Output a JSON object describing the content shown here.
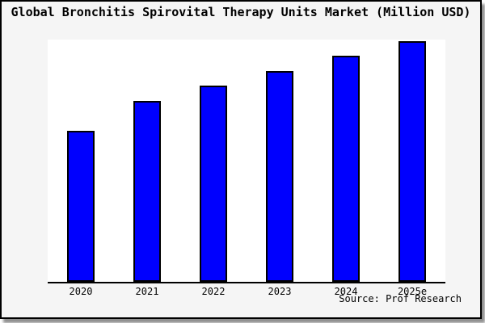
{
  "chart_data": {
    "type": "bar",
    "title": "Global Bronchitis Spirovital Therapy Units Market (Million USD)",
    "categories": [
      "2020",
      "2021",
      "2022",
      "2023",
      "2024",
      "2025e"
    ],
    "values": [
      100,
      120,
      130,
      140,
      150,
      160
    ],
    "xlabel": "",
    "ylabel": "",
    "ylim": [
      0,
      160.8
    ],
    "grid": false,
    "legend": false,
    "y_axis_labels_shown": false,
    "bar_color": "#0000fe",
    "bar_outline_color": "#000000"
  },
  "source": {
    "label": "Source: Prof Research"
  },
  "colors": {
    "page_bg": "#ffffff",
    "frame_bg": "#f5f5f5",
    "frame_border": "#000000",
    "plot_bg": "#ffffff",
    "axis": "#000000",
    "shadow": "#909090",
    "text": "#000000"
  }
}
